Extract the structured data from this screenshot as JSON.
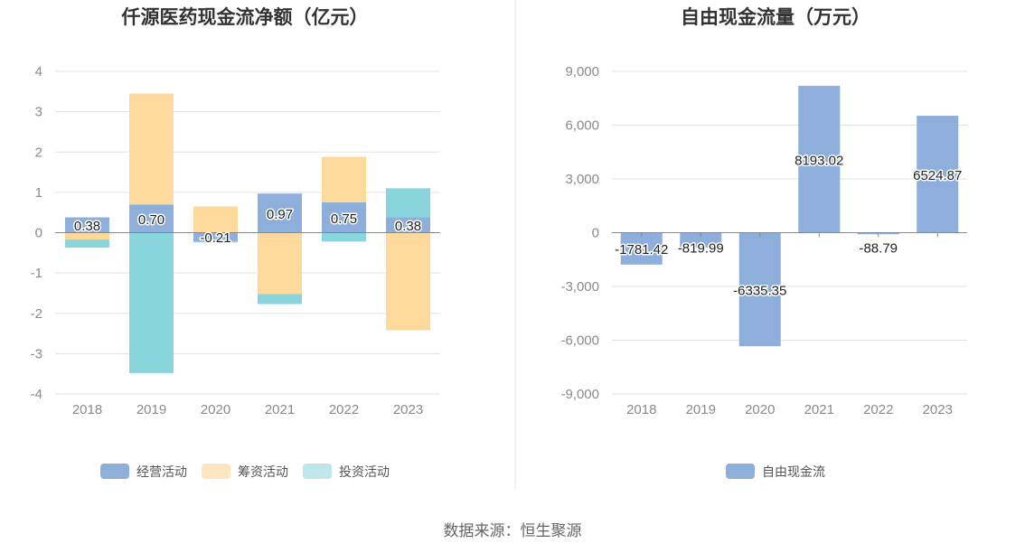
{
  "source": "数据来源：恒生聚源",
  "chart_data": [
    {
      "type": "bar",
      "stacked": true,
      "title": "仟源医药现金流净额（亿元）",
      "categories": [
        "2018",
        "2019",
        "2020",
        "2021",
        "2022",
        "2023"
      ],
      "ylim": [
        -4,
        4
      ],
      "yticks": [
        4,
        3,
        2,
        1,
        0,
        -1,
        -2,
        -3,
        -4
      ],
      "grid": true,
      "legend_position": "bottom",
      "series": [
        {
          "name": "经营活动",
          "color": "#8eaedb",
          "values": [
            0.38,
            0.7,
            -0.21,
            0.97,
            0.75,
            0.38
          ],
          "labels": [
            "0.38",
            "0.70",
            "-0.21",
            "0.97",
            "0.75",
            "0.38"
          ]
        },
        {
          "name": "筹资活动",
          "color": "#fdd99c",
          "values": [
            -0.17,
            2.75,
            0.65,
            -1.52,
            1.13,
            -2.42
          ]
        },
        {
          "name": "投资活动",
          "color": "#88d5db",
          "values": [
            -0.2,
            -3.48,
            -0.03,
            -0.25,
            -0.22,
            0.72
          ]
        }
      ],
      "legend_colors": [
        "#8eaedb",
        "#fde6bf",
        "#bfe6ea"
      ]
    },
    {
      "type": "bar",
      "title": "自由现金流量（万元）",
      "categories": [
        "2018",
        "2019",
        "2020",
        "2021",
        "2022",
        "2023"
      ],
      "ylim": [
        -9000,
        9000
      ],
      "yticks": [
        9000,
        6000,
        3000,
        0,
        -3000,
        -6000,
        -9000
      ],
      "ytick_labels": [
        "9,000",
        "6,000",
        "3,000",
        "0",
        "-3,000",
        "-6,000",
        "-9,000"
      ],
      "grid": true,
      "legend_position": "bottom",
      "series": [
        {
          "name": "自由现金流",
          "color": "#8eaedb",
          "values": [
            -1781.42,
            -819.99,
            -6335.35,
            8193.02,
            -88.79,
            6524.87
          ],
          "labels": [
            "-1781.42",
            "-819.99",
            "-6335.35",
            "8193.02",
            "-88.79",
            "6524.87"
          ]
        }
      ]
    }
  ]
}
